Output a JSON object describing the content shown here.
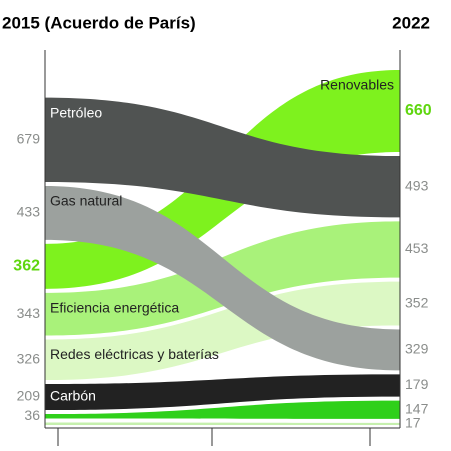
{
  "chart_data": {
    "type": "bump",
    "x": [
      "2015 (Acuerdo de París)",
      "2022"
    ],
    "series": [
      {
        "name": "Renovables",
        "color": "#7ef21e",
        "values": [
          362,
          660
        ],
        "highlight": true
      },
      {
        "name": "Petróleo",
        "color": "#505352",
        "values": [
          679,
          493
        ]
      },
      {
        "name": "Eficiencia energética",
        "color": "#a9f27a",
        "values": [
          343,
          453
        ]
      },
      {
        "name": "Redes eléctricas y baterías",
        "color": "#dcf8c4",
        "values": [
          326,
          352
        ]
      },
      {
        "name": "Gas natural",
        "color": "#9ca19e",
        "values": [
          433,
          329
        ]
      },
      {
        "name": "Carbón",
        "color": "#222222",
        "values": [
          209,
          179
        ]
      },
      {
        "color": "#2fd01a",
        "values": [
          36,
          147
        ]
      },
      {
        "color": "#c6f0ae",
        "values": [
          20,
          17
        ],
        "value_labels": [
          null,
          "17"
        ]
      }
    ]
  }
}
